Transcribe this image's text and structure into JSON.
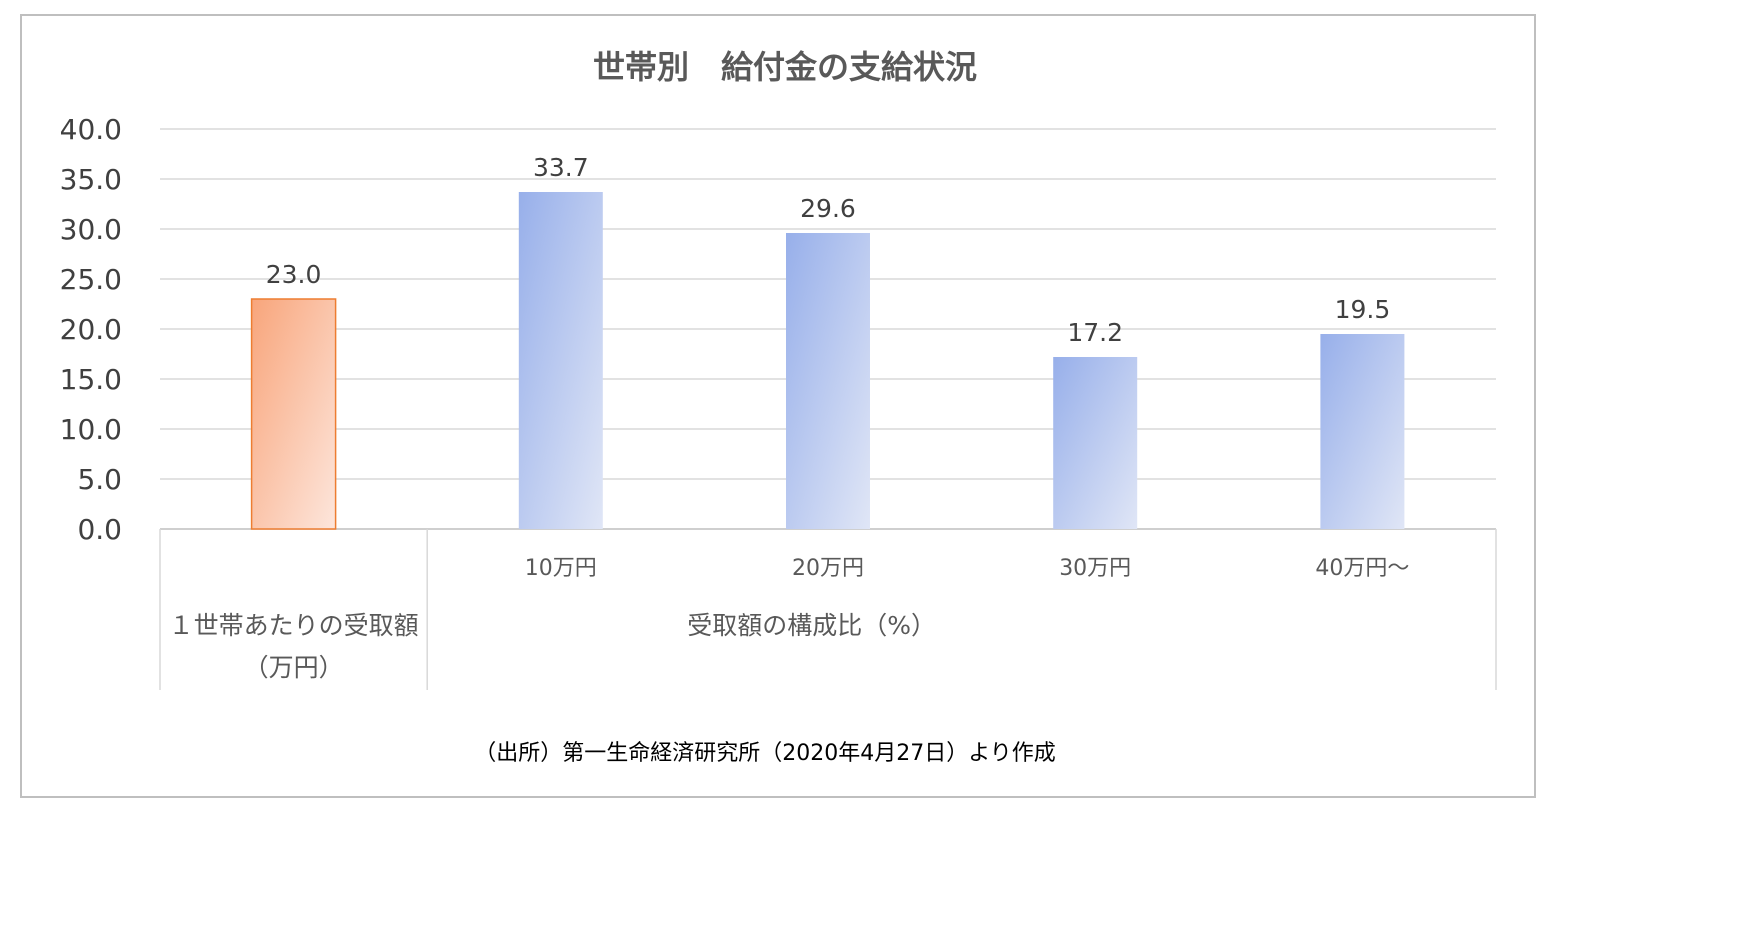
{
  "chart_data": {
    "type": "bar",
    "title": "世帯別　給付金の支給状況",
    "ylim": [
      0,
      40
    ],
    "yticks": [
      "0.0",
      "5.0",
      "10.0",
      "15.0",
      "20.0",
      "25.0",
      "30.0",
      "35.0",
      "40.0"
    ],
    "grid": true,
    "bars": [
      {
        "category": "",
        "value": 23.0,
        "label": "23.0",
        "color": "#f4b183"
      },
      {
        "category": "10万円",
        "value": 33.7,
        "label": "33.7",
        "color": "#9fb4ea"
      },
      {
        "category": "20万円",
        "value": 29.6,
        "label": "29.6",
        "color": "#9fb4ea"
      },
      {
        "category": "30万円",
        "value": 17.2,
        "label": "17.2",
        "color": "#9fb4ea"
      },
      {
        "category": "40万円～",
        "value": 19.5,
        "label": "19.5",
        "color": "#9fb4ea"
      }
    ],
    "groups": [
      {
        "label_line1": "１世帯あたりの受取額",
        "label_line2": "（万円）"
      },
      {
        "label_line1": "受取額の構成比（%）",
        "label_line2": ""
      }
    ],
    "source": "（出所）第一生命経済研究所（2020年4月27日）より作成"
  }
}
